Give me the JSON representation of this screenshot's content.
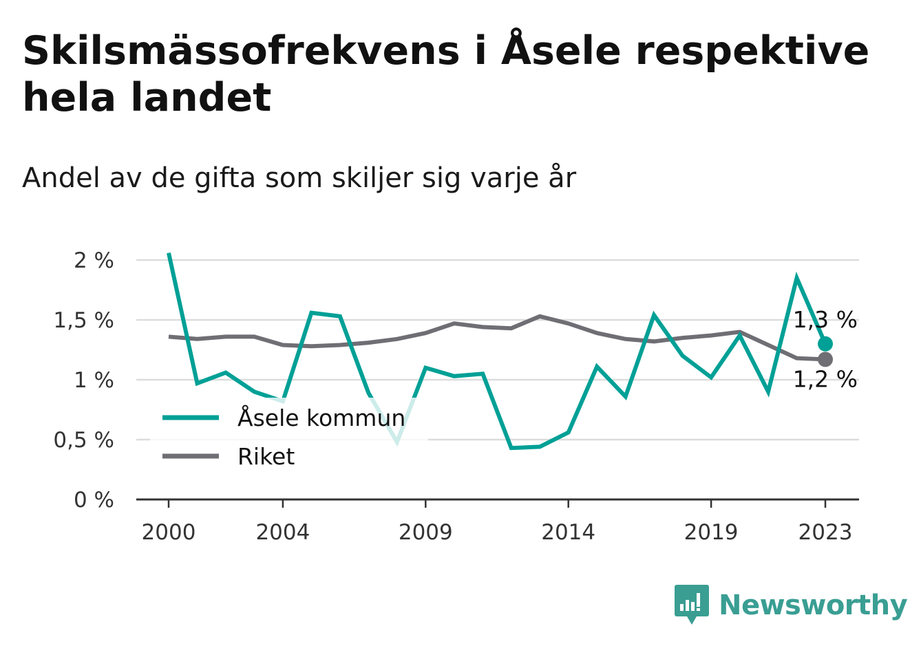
{
  "title": "Skilsmässofrekvens i Åsele respektive hela landet",
  "subtitle": "Andel av de gifta som skiljer sig varje år",
  "brand": {
    "name": "Newsworthy",
    "icon": "newsworthy-logo-icon",
    "color": "#3a9e93"
  },
  "chart_data": {
    "type": "line",
    "x": [
      2000,
      2001,
      2002,
      2003,
      2004,
      2005,
      2006,
      2007,
      2008,
      2009,
      2010,
      2011,
      2012,
      2013,
      2014,
      2015,
      2016,
      2017,
      2018,
      2019,
      2020,
      2021,
      2022,
      2023
    ],
    "x_ticks": [
      2000,
      2004,
      2009,
      2014,
      2019,
      2023
    ],
    "x_tick_labels": [
      "2000",
      "2004",
      "2009",
      "2014",
      "2019",
      "2023"
    ],
    "y_ticks": [
      0,
      0.5,
      1,
      1.5,
      2
    ],
    "y_tick_labels": [
      "0 %",
      "0,5 %",
      "1 %",
      "1,5 %",
      "2 %"
    ],
    "ylim": [
      0,
      2
    ],
    "grid": true,
    "legend_position": "bottom-left",
    "series": [
      {
        "name": "Åsele kommun",
        "color": "#00a096",
        "values": [
          2.06,
          0.97,
          1.06,
          0.9,
          0.82,
          1.56,
          1.53,
          0.89,
          0.48,
          1.1,
          1.03,
          1.05,
          0.43,
          0.44,
          0.56,
          1.11,
          0.86,
          1.54,
          1.2,
          1.02,
          1.37,
          0.9,
          1.85,
          1.3
        ],
        "end_label": "1,3 %"
      },
      {
        "name": "Riket",
        "color": "#6e6e74",
        "values": [
          1.36,
          1.34,
          1.36,
          1.36,
          1.29,
          1.28,
          1.29,
          1.31,
          1.34,
          1.39,
          1.47,
          1.44,
          1.43,
          1.53,
          1.47,
          1.39,
          1.34,
          1.32,
          1.35,
          1.37,
          1.4,
          1.29,
          1.18,
          1.17
        ],
        "end_label": "1,2 %"
      }
    ]
  }
}
